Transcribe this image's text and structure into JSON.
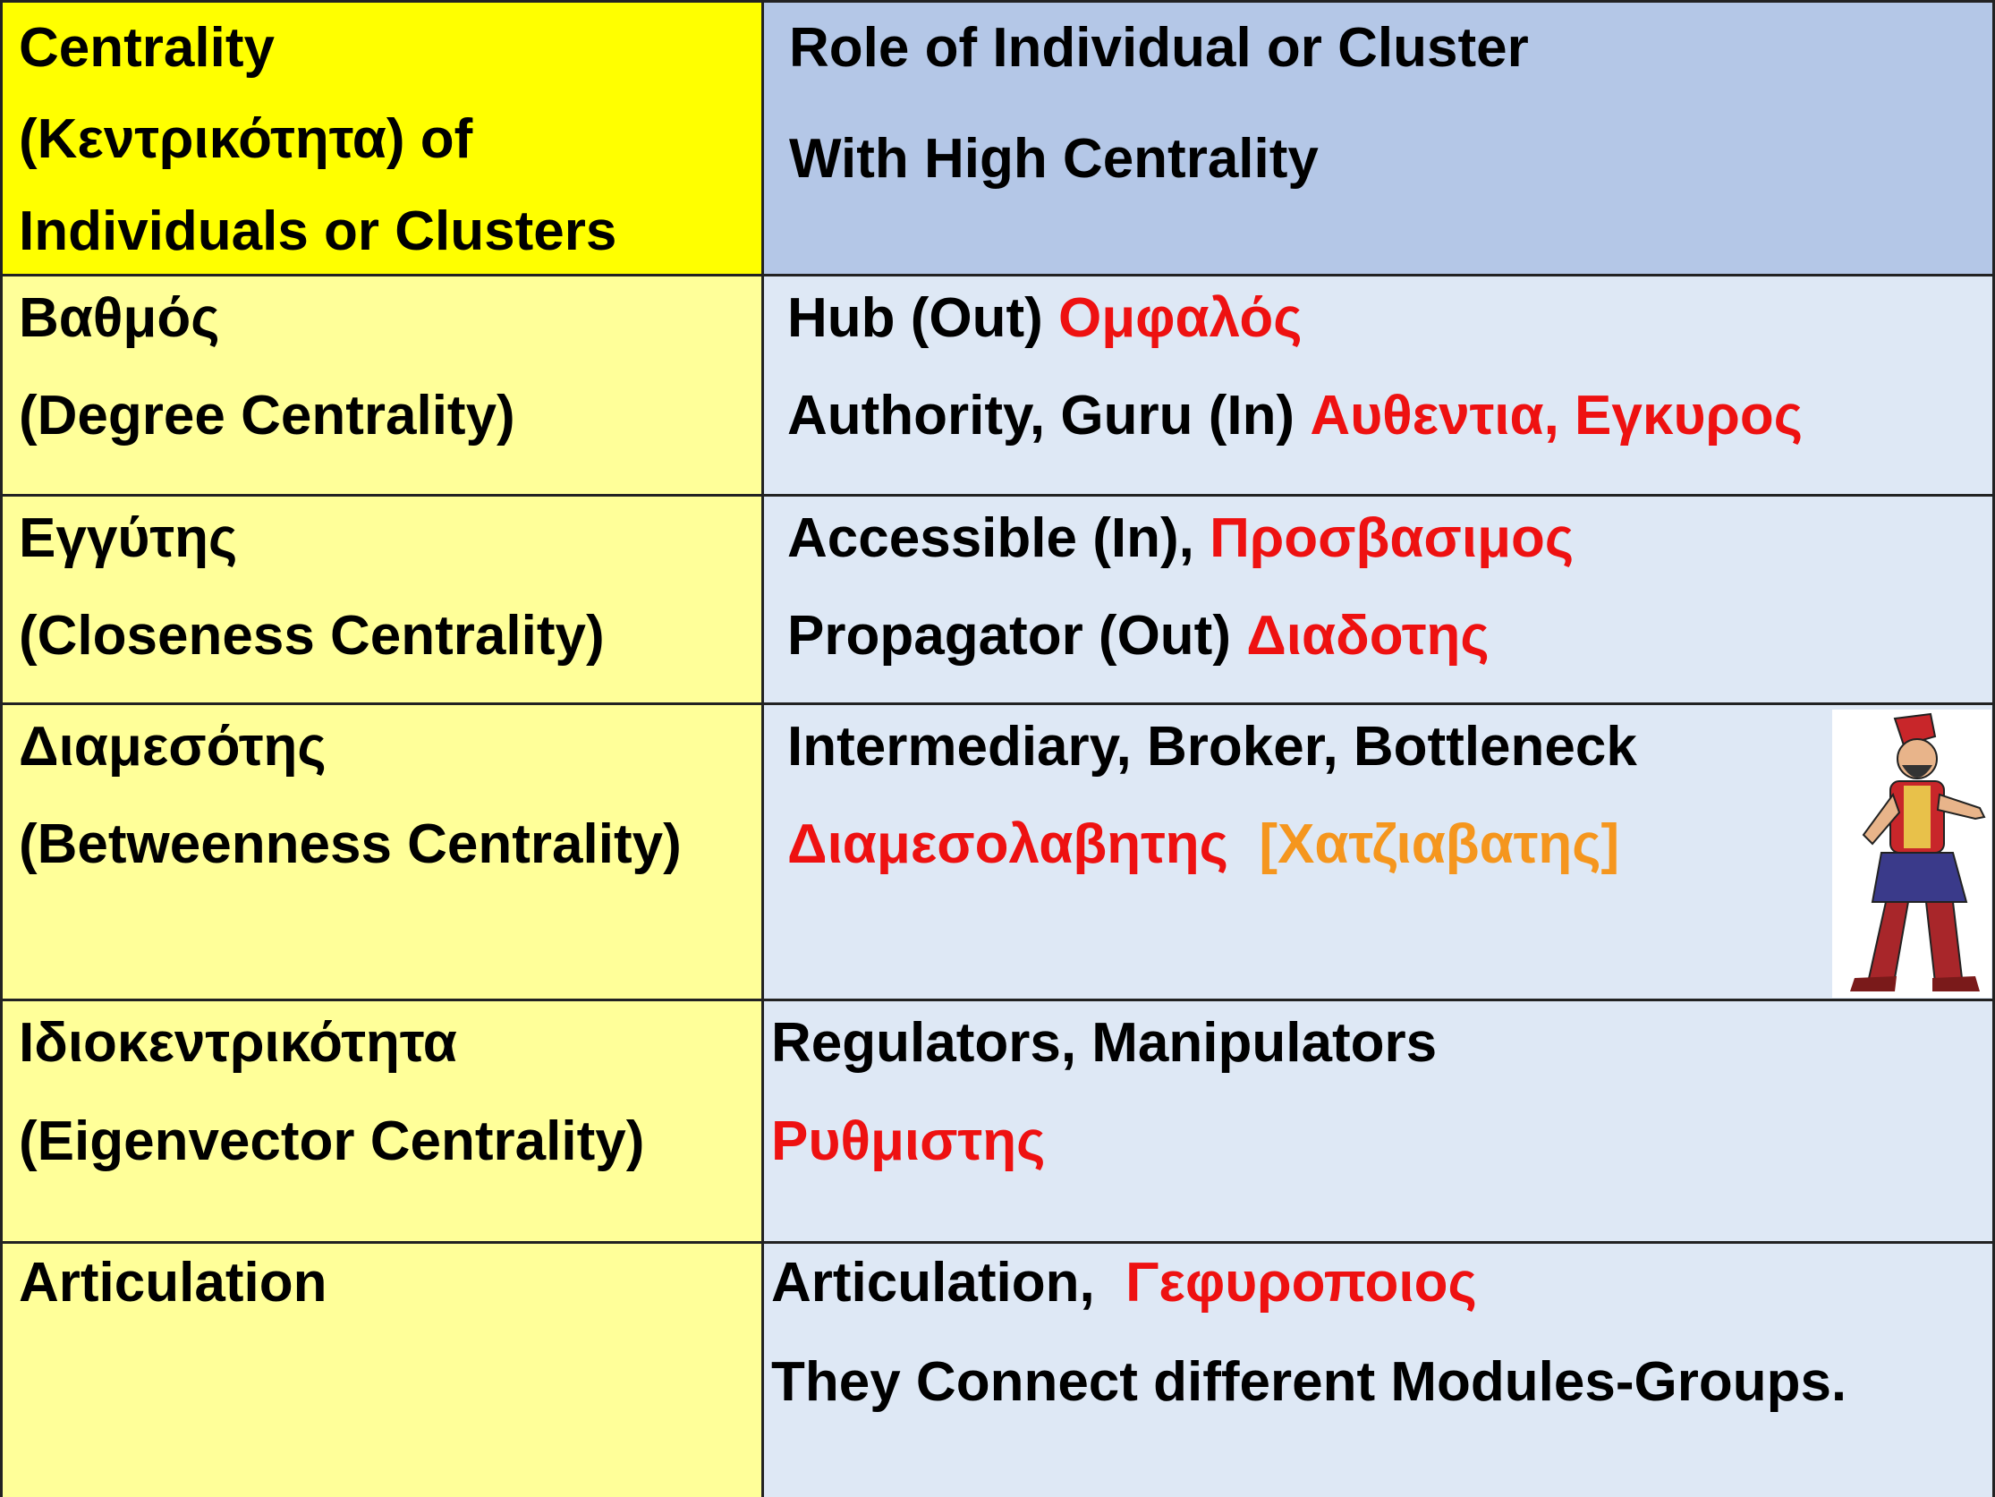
{
  "header": {
    "left": [
      "Centrality",
      "(Κεντρικότητα) of",
      "Individuals or Clusters"
    ],
    "right": [
      "Role of Individual or Cluster",
      "With High Centrality"
    ]
  },
  "rows": [
    {
      "left": [
        "Βαθμός",
        "(Degree Centrality)"
      ],
      "right": [
        [
          "Hub (Out) ",
          "Ομφαλός"
        ],
        [
          "Authority, Guru (In) ",
          "Αυθεντια, Εγκυρος"
        ]
      ]
    },
    {
      "left": [
        "Εγγύτης",
        "(Closeness Centrality)"
      ],
      "right": [
        [
          "Accessible (In), ",
          "Προσβασιμος"
        ],
        [
          "Propagator (Out) ",
          "Διαδοτης"
        ]
      ]
    },
    {
      "left": [
        "Διαμεσότης",
        "(Betweenness Centrality)"
      ],
      "right": [
        [
          "Intermediary, Broker, Bottleneck"
        ],
        [
          "Διαμεσολαβητης  ",
          "[Χατζιαβατης]"
        ]
      ]
    },
    {
      "left": [
        "Ιδιοκεντρικότητα",
        "(Eigenvector Centrality)"
      ],
      "right": [
        [
          "Regulators, Manipulators"
        ],
        [
          "Ρυθμιστης"
        ]
      ]
    },
    {
      "left": [
        "Articulation"
      ],
      "right": [
        [
          "Articulation,  ",
          "Γεφυροποιος"
        ],
        [
          "They Connect different Modules-Groups."
        ]
      ]
    }
  ]
}
